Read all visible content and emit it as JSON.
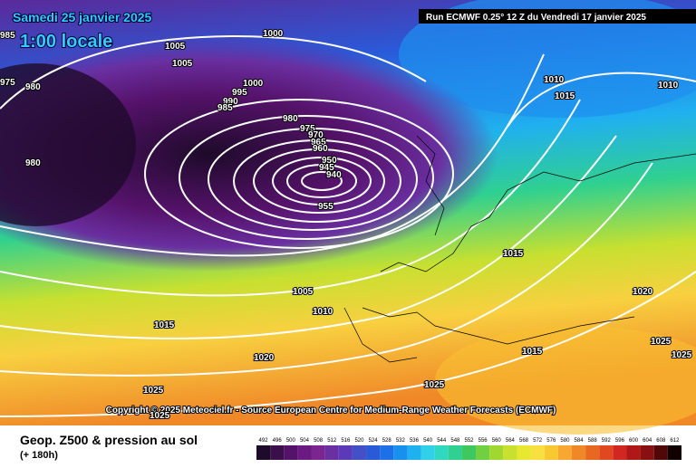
{
  "header": {
    "date": "Samedi 25 janvier 2025",
    "time": "1:00 locale",
    "run": "Run ECMWF 0.25° 12 Z du Vendredi 17 janvier 2025"
  },
  "copyright": "Copyright © 2025 Meteociel.fr - Source European Centre for Medium-Range Weather Forecasts (ECMWF)",
  "footer": {
    "title": "Geop. Z500 & pression au sol",
    "lead": "(+ 180h)"
  },
  "isobar_labels": [
    985,
    1005,
    1005,
    1000,
    975,
    980,
    1000,
    995,
    990,
    985,
    980,
    975,
    970,
    965,
    960,
    950,
    945,
    940,
    955,
    980,
    1010,
    1015,
    1010,
    1015,
    1020,
    1005,
    1010,
    1015,
    1020,
    1025,
    1025,
    1015,
    1025,
    1025,
    1025
  ],
  "legend": {
    "values": [
      492,
      496,
      500,
      504,
      508,
      512,
      516,
      520,
      524,
      528,
      532,
      536,
      540,
      544,
      548,
      552,
      556,
      560,
      564,
      568,
      572,
      576,
      580,
      584,
      588,
      592,
      596,
      600,
      604,
      608,
      612
    ],
    "colors": [
      "#1e0a2a",
      "#3a0f4a",
      "#55126a",
      "#6a1a80",
      "#7a2590",
      "#6a2fa0",
      "#5a3ab8",
      "#4450c8",
      "#2a5ad8",
      "#1e70e8",
      "#1890f0",
      "#20b0f0",
      "#30d0e8",
      "#30d8c0",
      "#30d090",
      "#40c860",
      "#70d040",
      "#a0d830",
      "#c8e030",
      "#e8e830",
      "#f8e040",
      "#f8c830",
      "#f8a830",
      "#f08828",
      "#e86820",
      "#e04820",
      "#d02820",
      "#b01818",
      "#881010",
      "#500808",
      "#100000"
    ]
  }
}
